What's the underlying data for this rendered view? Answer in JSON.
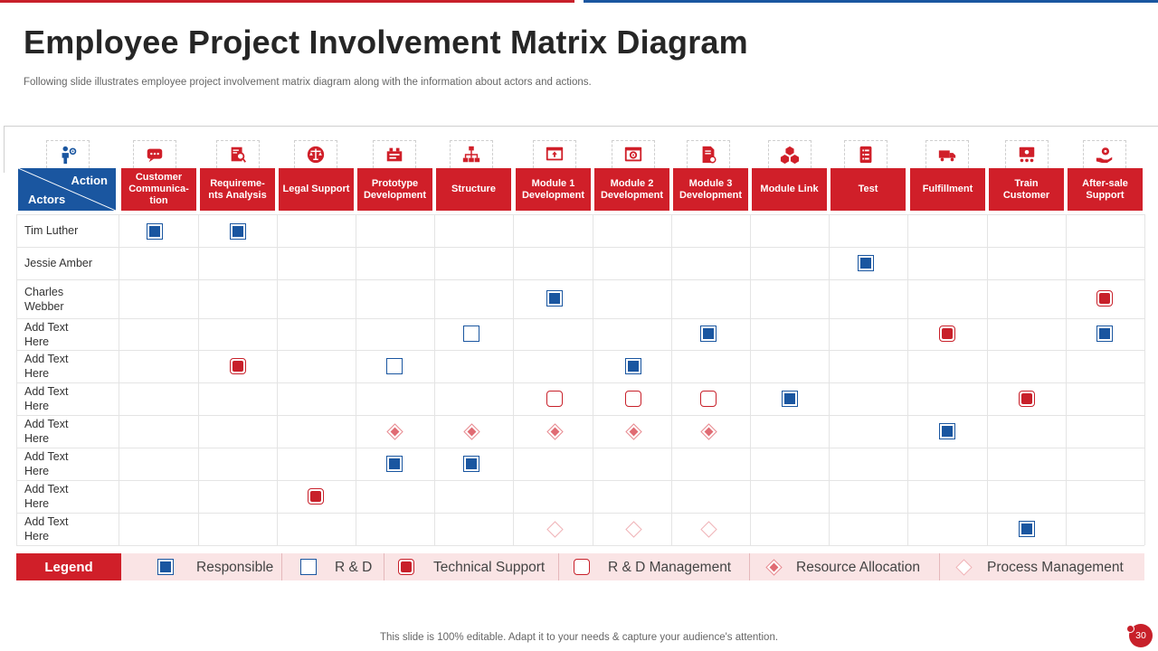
{
  "title": "Employee Project Involvement Matrix Diagram",
  "subtitle": "Following slide illustrates employee project involvement matrix diagram along with the information about actors and actions.",
  "header": {
    "action_label": "Action",
    "actors_label": "Actors"
  },
  "columns": [
    {
      "label": "Customer Communica- tion",
      "icon": "customer-chat-icon"
    },
    {
      "label": "Requireme- nts Analysis",
      "icon": "analysis-icon"
    },
    {
      "label": "Legal Support",
      "icon": "legal-scale-icon"
    },
    {
      "label": "Prototype Development",
      "icon": "prototype-icon"
    },
    {
      "label": "Structure",
      "icon": "hierarchy-icon"
    },
    {
      "label": "Module 1 Development",
      "icon": "web-module-icon"
    },
    {
      "label": "Module 2 Development",
      "icon": "gear-window-icon"
    },
    {
      "label": "Module 3 Development",
      "icon": "document-gear-icon"
    },
    {
      "label": "Module Link",
      "icon": "cubes-icon"
    },
    {
      "label": "Test",
      "icon": "checklist-icon"
    },
    {
      "label": "Fulfillment",
      "icon": "truck-icon"
    },
    {
      "label": "Train Customer",
      "icon": "training-icon"
    },
    {
      "label": "After-sale Support",
      "icon": "support-hand-icon"
    }
  ],
  "rows": [
    {
      "actor": "Tim Luther",
      "marks": [
        {
          "col": 0,
          "type": "responsible"
        },
        {
          "col": 1,
          "type": "responsible"
        }
      ]
    },
    {
      "actor": "Jessie Amber",
      "marks": [
        {
          "col": 9,
          "type": "responsible"
        }
      ]
    },
    {
      "actor": "Charles Webber",
      "marks": [
        {
          "col": 5,
          "type": "responsible"
        },
        {
          "col": 12,
          "type": "tech"
        }
      ]
    },
    {
      "actor": "Add Text Here",
      "marks": [
        {
          "col": 4,
          "type": "rd"
        },
        {
          "col": 7,
          "type": "responsible"
        },
        {
          "col": 10,
          "type": "tech"
        },
        {
          "col": 12,
          "type": "responsible"
        }
      ]
    },
    {
      "actor": "Add Text Here",
      "marks": [
        {
          "col": 1,
          "type": "tech"
        },
        {
          "col": 3,
          "type": "rd"
        },
        {
          "col": 6,
          "type": "responsible"
        }
      ]
    },
    {
      "actor": "Add Text Here",
      "marks": [
        {
          "col": 5,
          "type": "rdm"
        },
        {
          "col": 6,
          "type": "rdm"
        },
        {
          "col": 7,
          "type": "rdm"
        },
        {
          "col": 8,
          "type": "responsible"
        },
        {
          "col": 11,
          "type": "tech"
        }
      ]
    },
    {
      "actor": "Add Text Here",
      "marks": [
        {
          "col": 3,
          "type": "alloc"
        },
        {
          "col": 4,
          "type": "alloc"
        },
        {
          "col": 5,
          "type": "alloc"
        },
        {
          "col": 6,
          "type": "alloc"
        },
        {
          "col": 7,
          "type": "alloc"
        },
        {
          "col": 10,
          "type": "responsible"
        }
      ]
    },
    {
      "actor": "Add Text Here",
      "marks": [
        {
          "col": 3,
          "type": "responsible"
        },
        {
          "col": 4,
          "type": "responsible"
        }
      ]
    },
    {
      "actor": "Add Text Here",
      "marks": [
        {
          "col": 2,
          "type": "tech"
        }
      ]
    },
    {
      "actor": "Add Text Here",
      "marks": [
        {
          "col": 5,
          "type": "process"
        },
        {
          "col": 6,
          "type": "process"
        },
        {
          "col": 7,
          "type": "process"
        },
        {
          "col": 11,
          "type": "responsible"
        }
      ]
    }
  ],
  "legend": {
    "label": "Legend",
    "items": [
      {
        "type": "responsible",
        "label": "Responsible"
      },
      {
        "type": "rd",
        "label": "R & D"
      },
      {
        "type": "tech",
        "label": "Technical Support"
      },
      {
        "type": "rdm",
        "label": "R & D Management"
      },
      {
        "type": "alloc",
        "label": "Resource Allocation"
      },
      {
        "type": "process",
        "label": "Process Management"
      }
    ]
  },
  "footer": "This slide is 100% editable. Adapt it to your needs & capture your audience's attention.",
  "page_number": "30",
  "colors": {
    "red": "#d01f29",
    "blue": "#1a56a0",
    "legend_bg": "#fae4e5"
  }
}
